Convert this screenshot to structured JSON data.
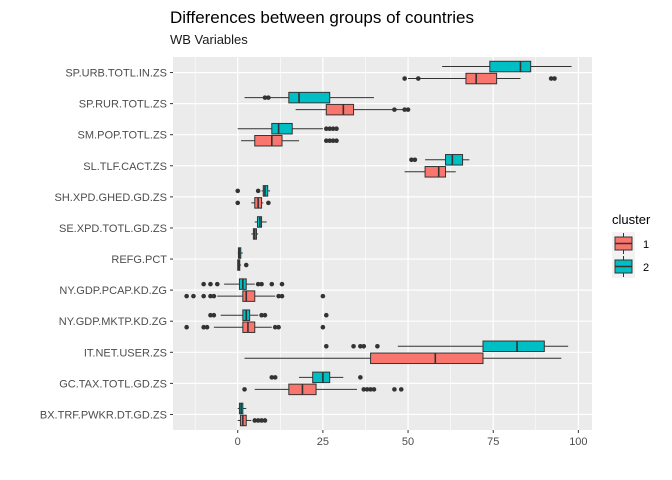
{
  "chart_data": {
    "type": "boxplot",
    "orientation": "horizontal",
    "title": "Differences between groups of countries",
    "subtitle": "WB Variables",
    "xlabel": "",
    "ylabel": "",
    "xlim": [
      -19,
      104
    ],
    "x_ticks": [
      0,
      25,
      50,
      75,
      100
    ],
    "grid": true,
    "legend": {
      "title": "cluster",
      "position": "right"
    },
    "categories": [
      "SP.URB.TOTL.IN.ZS",
      "SP.RUR.TOTL.ZS",
      "SM.POP.TOTL.ZS",
      "SL.TLF.CACT.ZS",
      "SH.XPD.GHED.GD.ZS",
      "SE.XPD.TOTL.GD.ZS",
      "REFG.PCT",
      "NY.GDP.PCAP.KD.ZG",
      "NY.GDP.MKTP.KD.ZG",
      "IT.NET.USER.ZS",
      "GC.TAX.TOTL.GD.ZS",
      "BX.TRF.PWKR.DT.GD.ZS"
    ],
    "series": [
      {
        "name": "1",
        "color": "#F8766D",
        "boxes": [
          {
            "min": 50,
            "q1": 67,
            "median": 70,
            "q3": 76,
            "max": 83,
            "outliers": [
              49,
              53,
              93,
              92
            ]
          },
          {
            "min": 17,
            "q1": 26,
            "median": 31,
            "q3": 34,
            "max": 49,
            "outliers": [
              46,
              49,
              50
            ]
          },
          {
            "min": 1,
            "q1": 5,
            "median": 10,
            "q3": 13,
            "max": 18,
            "outliers": [
              26,
              27,
              28,
              29
            ]
          },
          {
            "min": 49,
            "q1": 55,
            "median": 59,
            "q3": 61,
            "max": 64,
            "outliers": []
          },
          {
            "min": 4,
            "q1": 5,
            "median": 6,
            "q3": 7,
            "max": 7.5,
            "outliers": [
              0,
              9
            ]
          },
          {
            "min": 4,
            "q1": 4.6,
            "median": 5,
            "q3": 5.5,
            "max": 6,
            "outliers": []
          },
          {
            "min": 0,
            "q1": 0,
            "median": 0.3,
            "q3": 0.6,
            "max": 1,
            "outliers": [
              2.5
            ]
          },
          {
            "min": -6,
            "q1": 1.5,
            "median": 2.5,
            "q3": 5,
            "max": 11,
            "outliers": [
              -15,
              -13,
              -10,
              -8,
              -7,
              12,
              13,
              25
            ]
          },
          {
            "min": -7,
            "q1": 1.5,
            "median": 3,
            "q3": 5,
            "max": 10,
            "outliers": [
              -15,
              -10,
              -9,
              11,
              12,
              25
            ]
          },
          {
            "min": 2,
            "q1": 39,
            "median": 58,
            "q3": 72,
            "max": 95,
            "outliers": []
          },
          {
            "min": 5,
            "q1": 15,
            "median": 19,
            "q3": 23,
            "max": 35,
            "outliers": [
              2,
              37,
              38,
              39,
              40,
              46,
              48
            ]
          },
          {
            "min": 0,
            "q1": 0.8,
            "median": 1.5,
            "q3": 2.5,
            "max": 4,
            "outliers": [
              5,
              6,
              7,
              8
            ]
          }
        ]
      },
      {
        "name": "2",
        "color": "#00BFC4",
        "boxes": [
          {
            "min": 60,
            "q1": 74,
            "median": 83,
            "q3": 86,
            "max": 98,
            "outliers": []
          },
          {
            "min": 2,
            "q1": 15,
            "median": 18,
            "q3": 27,
            "max": 40,
            "outliers": [
              8,
              9
            ]
          },
          {
            "min": 0,
            "q1": 10,
            "median": 12,
            "q3": 16,
            "max": 25,
            "outliers": [
              26,
              27,
              28,
              29
            ]
          },
          {
            "min": 55,
            "q1": 61,
            "median": 63,
            "q3": 66,
            "max": 68,
            "outliers": [
              51,
              52
            ]
          },
          {
            "min": 7,
            "q1": 7.5,
            "median": 8,
            "q3": 8.8,
            "max": 9.5,
            "outliers": [
              0,
              6
            ]
          },
          {
            "min": 5,
            "q1": 5.8,
            "median": 6.5,
            "q3": 7,
            "max": 8.5,
            "outliers": []
          },
          {
            "min": 0,
            "q1": 0.2,
            "median": 0.5,
            "q3": 0.9,
            "max": 1.5,
            "outliers": []
          },
          {
            "min": -4,
            "q1": 0.5,
            "median": 1.5,
            "q3": 2.5,
            "max": 5,
            "outliers": [
              -10,
              -8,
              -6,
              6,
              7,
              10,
              13
            ]
          },
          {
            "min": -5,
            "q1": 1.5,
            "median": 2.5,
            "q3": 3.5,
            "max": 6,
            "outliers": [
              -8,
              -7,
              7,
              8,
              26
            ]
          },
          {
            "min": 47,
            "q1": 72,
            "median": 82,
            "q3": 90,
            "max": 97,
            "outliers": [
              26,
              34,
              36,
              37,
              41
            ]
          },
          {
            "min": 18,
            "q1": 22,
            "median": 25,
            "q3": 27,
            "max": 31,
            "outliers": [
              10,
              11,
              36
            ]
          },
          {
            "min": 0,
            "q1": 0.5,
            "median": 1,
            "q3": 1.5,
            "max": 2.5,
            "outliers": []
          }
        ]
      }
    ]
  }
}
